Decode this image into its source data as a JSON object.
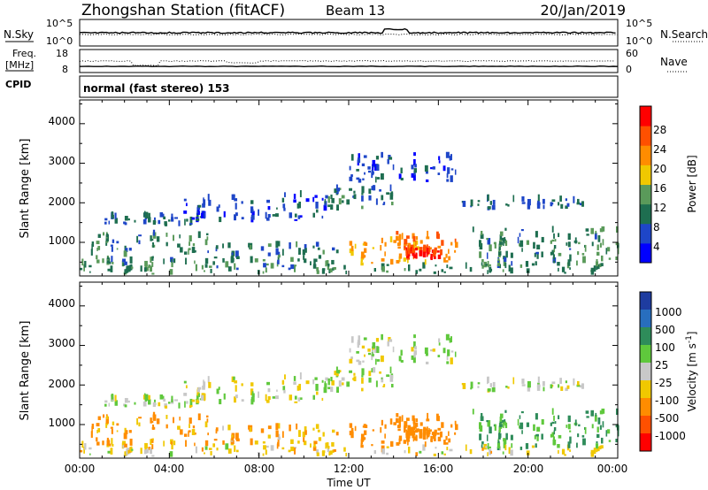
{
  "header": {
    "title": "Zhongshan Station (fitACF)",
    "beam": "Beam 13",
    "date": "20/Jan/2019"
  },
  "panels": {
    "nsky": {
      "label": "N.Sky",
      "left_ticks": [
        "10^5",
        "10^0"
      ],
      "right_ticks": [
        "10^5",
        "10^0"
      ],
      "right_label": "N.Search"
    },
    "freq": {
      "label_line1": "Freq.",
      "label_line2": "[MHz]",
      "left_ticks": [
        "18",
        "8"
      ],
      "right_ticks": [
        "60",
        "0"
      ],
      "right_label": "Nave"
    },
    "cpid": {
      "label": "CPID",
      "text": "normal (fast stereo) 153"
    }
  },
  "power_panel": {
    "ylabel": "Slant Range [km]",
    "y_ticks": [
      "4000",
      "3000",
      "2000",
      "1000"
    ],
    "colorbar_label": "Power [dB]",
    "colorbar_ticks": [
      "28",
      "24",
      "20",
      "16",
      "12",
      "8",
      "4"
    ],
    "colors": [
      "#0000ff",
      "#1e46c8",
      "#1e6e50",
      "#5a9a5a",
      "#f0c800",
      "#ff8c00",
      "#ff5000",
      "#ff0000"
    ]
  },
  "velocity_panel": {
    "ylabel": "Slant Range [km]",
    "y_ticks": [
      "4000",
      "3000",
      "2000",
      "1000"
    ],
    "colorbar_label": "Velocity [m s",
    "colorbar_sup": "-1",
    "colorbar_label_end": "]",
    "colorbar_ticks": [
      "1000",
      "500",
      "100",
      "25",
      "-25",
      "-100",
      "-500",
      "-1000"
    ],
    "colors": [
      "#1e3ca0",
      "#286ebe",
      "#2e8c5a",
      "#5fc83c",
      "#c8c8c8",
      "#f0c800",
      "#ff8c00",
      "#ff5000",
      "#ff0000"
    ]
  },
  "xaxis": {
    "label": "Time UT",
    "ticks": [
      "00:00",
      "04:00",
      "08:00",
      "12:00",
      "16:00",
      "20:00",
      "00:00"
    ]
  },
  "chart_data": {
    "type": "heatmap",
    "x_range_hours": [
      0,
      24
    ],
    "y_range_km": [
      150,
      4600
    ],
    "power_bins_db": [
      0,
      32
    ],
    "velocity_bins_ms": [
      -1000,
      1000
    ],
    "echo_regions": [
      {
        "t": [
          0,
          24
        ],
        "r": [
          180,
          420
        ],
        "power": 12,
        "velocity": -40
      },
      {
        "t": [
          1.0,
          5.0
        ],
        "r": [
          1400,
          1650
        ],
        "power": 8,
        "velocity": 15
      },
      {
        "t": [
          4.5,
          11.0
        ],
        "r": [
          1500,
          2150
        ],
        "power": 6,
        "velocity": 10
      },
      {
        "t": [
          0.5,
          6.0
        ],
        "r": [
          420,
          1200
        ],
        "power": 10,
        "velocity": -120
      },
      {
        "t": [
          6.0,
          11.5
        ],
        "r": [
          300,
          900
        ],
        "power": 10,
        "velocity": -100
      },
      {
        "t": [
          11.0,
          14.0
        ],
        "r": [
          1800,
          2350
        ],
        "power": 9,
        "velocity": 5
      },
      {
        "t": [
          12.0,
          15.5
        ],
        "r": [
          380,
          1000
        ],
        "power": 20,
        "velocity": -180
      },
      {
        "t": [
          14.0,
          16.8
        ],
        "r": [
          450,
          1250
        ],
        "power": 24,
        "velocity": -250
      },
      {
        "t": [
          14.5,
          16.0
        ],
        "r": [
          550,
          800
        ],
        "power": 30,
        "velocity": -300
      },
      {
        "t": [
          17.5,
          24.0
        ],
        "r": [
          350,
          1300
        ],
        "power": 11,
        "velocity": 120
      },
      {
        "t": [
          17.0,
          23.0
        ],
        "r": [
          1800,
          2050
        ],
        "power": 8,
        "velocity": 10
      },
      {
        "t": [
          12.0,
          17.0
        ],
        "r": [
          2500,
          3200
        ],
        "power": 6,
        "velocity": 20
      }
    ]
  }
}
